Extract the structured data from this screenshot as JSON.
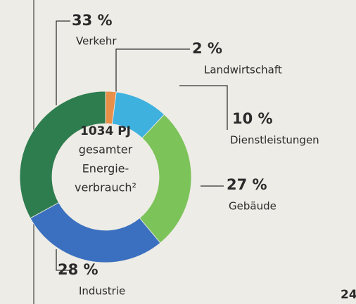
{
  "chart_data": {
    "type": "donut",
    "categories": [
      "Landwirtschaft",
      "Dienstleistungen",
      "Gebäude",
      "Industrie",
      "Verkehr"
    ],
    "values": [
      2,
      10,
      27,
      28,
      33
    ],
    "value_labels": [
      "2 %",
      "10 %",
      "27 %",
      "28 %",
      "33 %"
    ],
    "colors": [
      "#e8904a",
      "#3fb1df",
      "#7cc35a",
      "#3a70bf",
      "#2e7d4f"
    ],
    "center_text": [
      "1034 PJ",
      "gesamter",
      "Energie-",
      "verbrauch²"
    ]
  },
  "page_number": "24"
}
